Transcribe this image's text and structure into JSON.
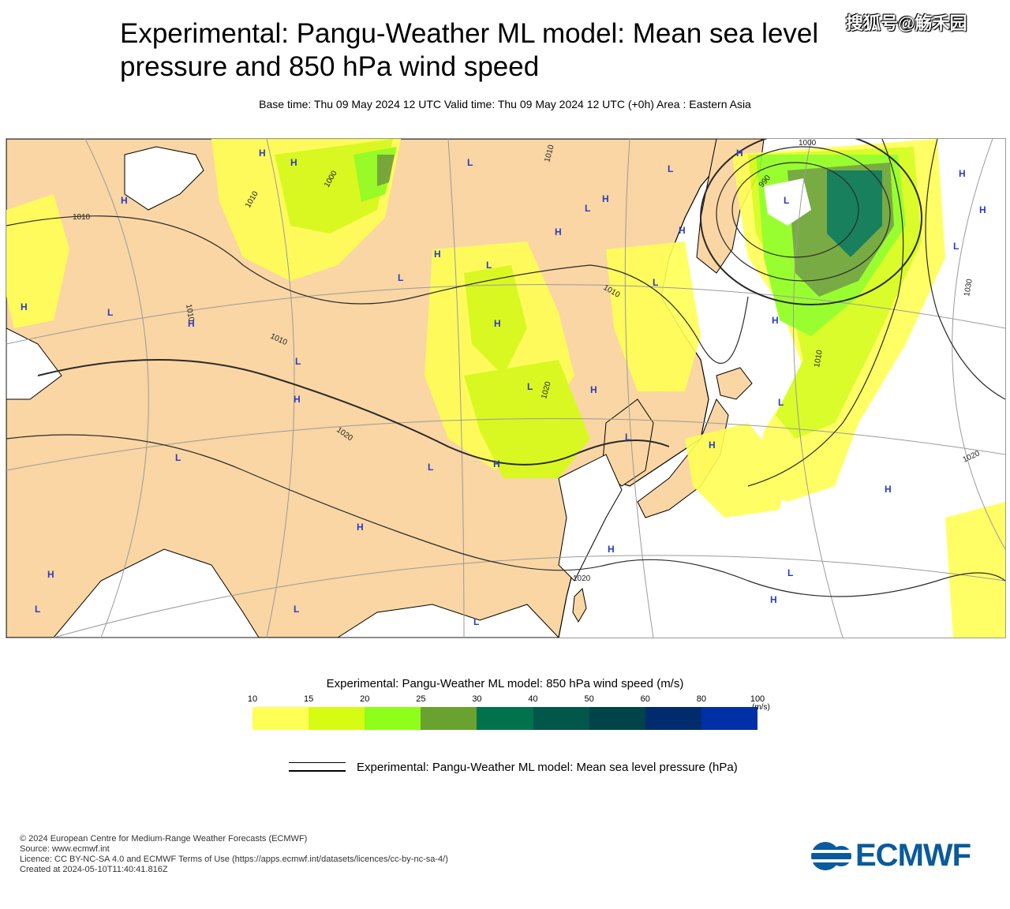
{
  "header": {
    "title": "Experimental: Pangu-Weather ML model: Mean sea level pressure and 850 hPa wind speed",
    "subtitle": "Base time: Thu 09 May 2024 12 UTC Valid time: Thu 09 May 2024 12 UTC (+0h) Area : Eastern Asia",
    "watermark": "搜狐号@觞禾园"
  },
  "map": {
    "area": "Eastern Asia",
    "colors": {
      "land": "#f9d6a4",
      "sea": "#ffffff",
      "coast": "#000000",
      "graticule": "#9b9b9b",
      "isobar": "#2a2a2a",
      "pressure_marker": "#2a3bc4"
    },
    "isobar_labels": [
      "1000",
      "990",
      "1010",
      "1010",
      "1010",
      "1010",
      "1010",
      "1010",
      "1010",
      "1000",
      "1020",
      "1020",
      "1020",
      "1030",
      "1020"
    ],
    "pressure_centres": [
      "H",
      "H",
      "H",
      "H",
      "H",
      "H",
      "H",
      "H",
      "H",
      "H",
      "H",
      "H",
      "H",
      "H",
      "H",
      "H",
      "H",
      "H",
      "H",
      "H",
      "H",
      "H",
      "H",
      "L",
      "L",
      "L",
      "L",
      "L",
      "L",
      "L",
      "L",
      "L",
      "L",
      "L",
      "L",
      "L",
      "L",
      "L",
      "L",
      "L",
      "L",
      "L"
    ]
  },
  "wind_legend": {
    "title": "Experimental: Pangu-Weather ML model: 850 hPa wind speed (m/s)",
    "unit": "(m/s)",
    "ticks": [
      "10",
      "15",
      "20",
      "25",
      "30",
      "40",
      "50",
      "60",
      "80",
      "100"
    ],
    "colors": [
      "#ffff55",
      "#d6fc14",
      "#8efe1a",
      "#6aa22f",
      "#00734c",
      "#015749",
      "#004448",
      "#002c6d",
      "#0030a8"
    ]
  },
  "mslp_legend": {
    "label": "Experimental: Pangu-Weather ML model: Mean sea level pressure (hPa)"
  },
  "footer": {
    "copyright": "© 2024 European Centre for Medium-Range Weather Forecasts (ECMWF)",
    "source": "Source: www.ecmwf.int",
    "licence": "Licence: CC BY-NC-SA 4.0 and ECMWF Terms of Use (https://apps.ecmwf.int/datasets/licences/cc-by-nc-sa-4/)",
    "created": "Created at 2024-05-10T11:40:41.816Z"
  },
  "logo": {
    "text": "ECMWF",
    "color": "#0a5a9c"
  }
}
